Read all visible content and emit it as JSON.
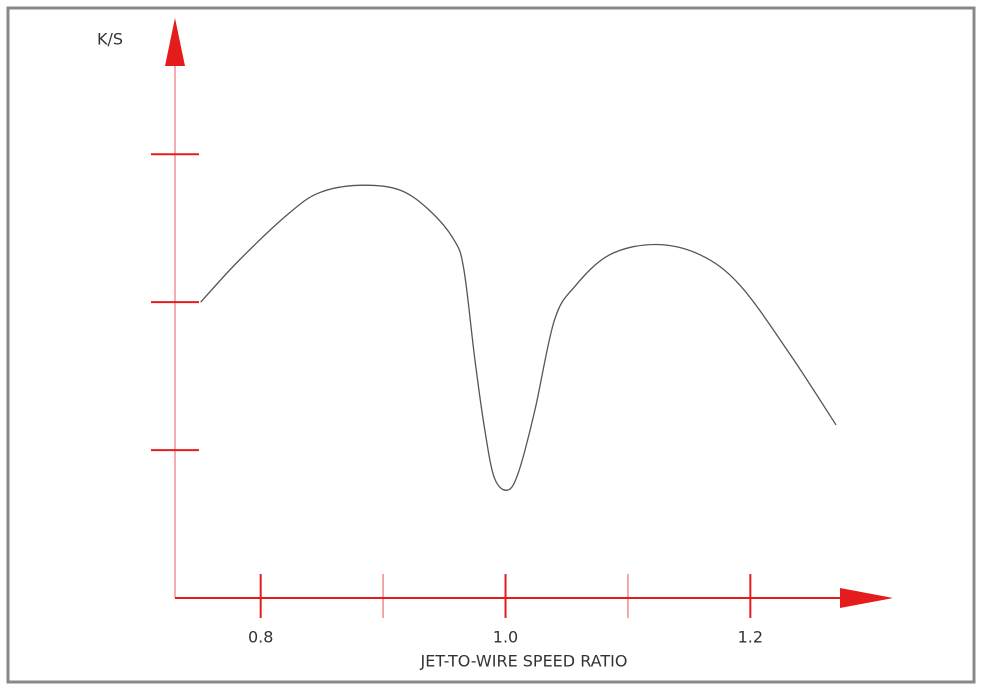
{
  "chart_data": {
    "type": "line",
    "ylabel": "K/S",
    "xlabel": "JET-TO-WIRE SPEED RATIO",
    "x": [
      0.751,
      0.782,
      0.823,
      0.848,
      0.88,
      0.913,
      0.938,
      0.958,
      0.966,
      0.975,
      0.983,
      0.991,
      1.002,
      1.011,
      1.024,
      1.04,
      1.057,
      1.085,
      1.122,
      1.159,
      1.192,
      1.233,
      1.27
    ],
    "series": [
      {
        "color": "#555555",
        "values": [
          2.0,
          2.28,
          2.6,
          2.74,
          2.79,
          2.76,
          2.62,
          2.42,
          2.22,
          1.61,
          1.14,
          0.81,
          0.73,
          0.86,
          1.27,
          1.88,
          2.11,
          2.32,
          2.39,
          2.32,
          2.11,
          1.64,
          1.17
        ]
      }
    ],
    "xlim": [
      0.73,
      1.31
    ],
    "ylim": [
      0,
      3.84
    ],
    "xticks": [
      0.8,
      {
        "value": 1,
        "label": "1.0"
      },
      1.2
    ],
    "xminor_ticks": [
      0.9,
      1.1
    ],
    "yticks": [
      1,
      2,
      3
    ],
    "axis_color": "#e51c1c"
  }
}
